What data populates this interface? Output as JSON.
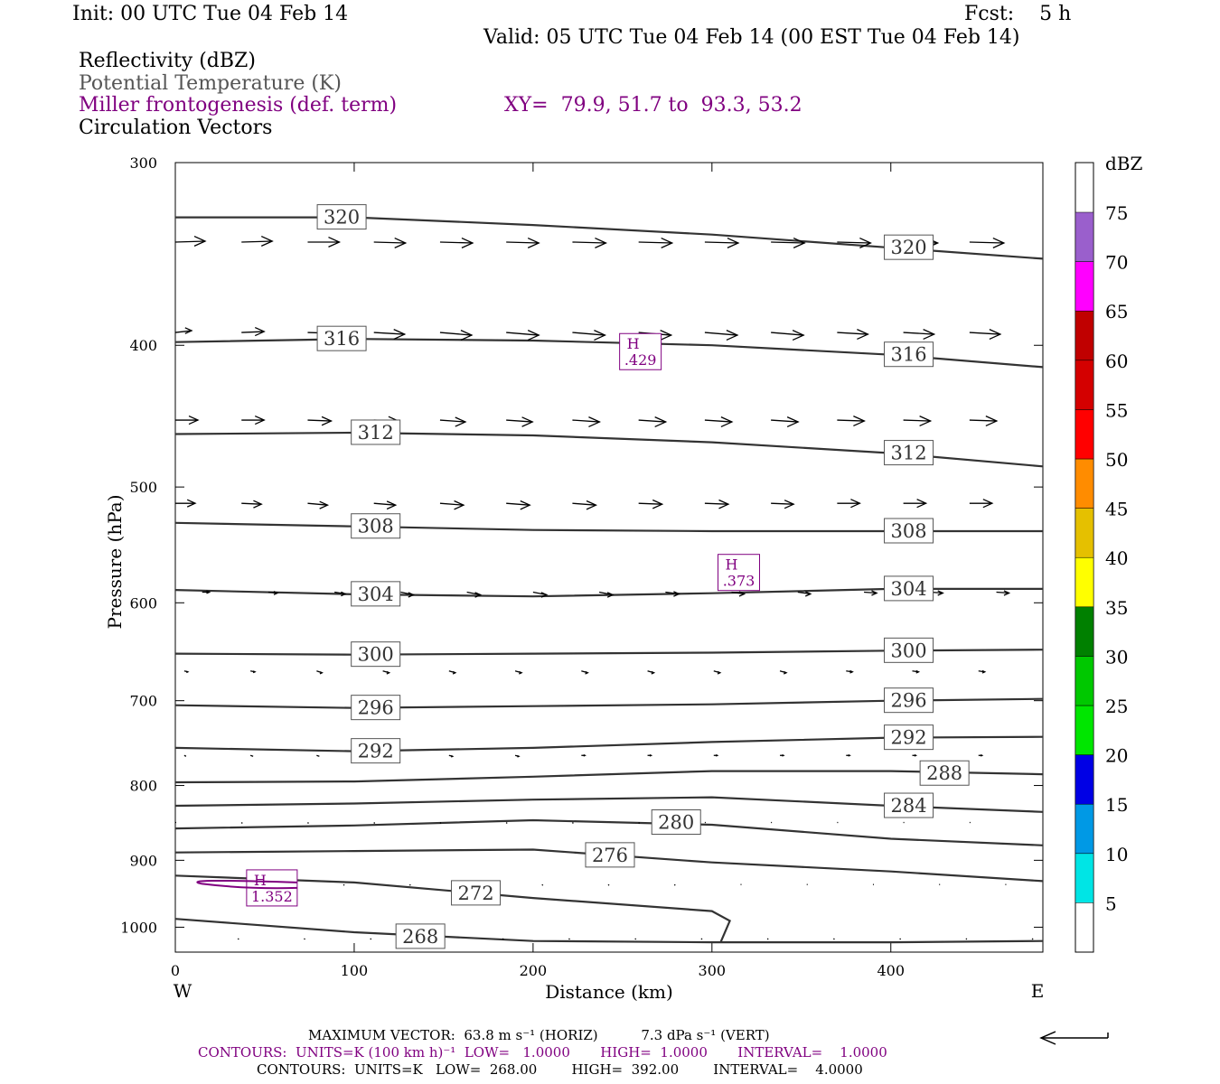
{
  "header": {
    "init": "Init: 00 UTC Tue 04 Feb 14",
    "fcst": "Fcst:    5 h",
    "valid": "Valid: 05 UTC Tue 04 Feb 14 (00 EST Tue 04 Feb 14)"
  },
  "legend": {
    "line1": "Reflectivity (dBZ)",
    "line2": "Potential Temperature (K)",
    "line3": "Miller frontogenesis (def. term)",
    "xy": "XY=  79.9, 51.7 to  93.3, 53.2",
    "line4": "Circulation Vectors"
  },
  "colors": {
    "purple": "#800080",
    "theta_contour": "#333333",
    "vector": "#000000"
  },
  "footer": {
    "max_vector": "MAXIMUM VECTOR:  63.8 m s⁻¹ (HORIZ)          7.3 dPa s⁻¹ (VERT)",
    "contours_fronto": "CONTOURS:  UNITS=K (100 km h)⁻¹  LOW=   1.0000       HIGH=  1.0000       INTERVAL=    1.0000",
    "contours_theta": "CONTOURS:  UNITS=K   LOW=  268.00        HIGH=  392.00        INTERVAL=    4.0000"
  },
  "colorbar": {
    "unit": "dBZ",
    "levels": [
      5,
      10,
      15,
      20,
      25,
      30,
      35,
      40,
      45,
      50,
      55,
      60,
      65,
      70,
      75
    ],
    "colors": [
      "#00e5e5",
      "#0099e5",
      "#0000e5",
      "#00e600",
      "#00c800",
      "#008000",
      "#ffff00",
      "#e5c000",
      "#ff8c00",
      "#ff0000",
      "#d40000",
      "#c00000",
      "#ff00ff",
      "#9a5fcc"
    ]
  },
  "chart_data": {
    "type": "cross-section",
    "xlabel": "Distance (km)",
    "ylabel": "Pressure (hPa)",
    "xlim": [
      0,
      485
    ],
    "ylim": [
      1040,
      300
    ],
    "y_scale": "log",
    "x_ticks": [
      0,
      100,
      200,
      300,
      400
    ],
    "y_ticks": [
      300,
      400,
      500,
      600,
      700,
      800,
      900,
      1000
    ],
    "x_end_labels": {
      "left": "W",
      "right": "E"
    },
    "theta_contours": [
      {
        "value": 320,
        "label": "320",
        "points": [
          [
            0,
            327
          ],
          [
            100,
            327
          ],
          [
            200,
            331
          ],
          [
            300,
            336
          ],
          [
            400,
            343
          ],
          [
            485,
            349
          ]
        ],
        "labels_at": [
          [
            93,
            327
          ],
          [
            410,
            343
          ]
        ]
      },
      {
        "value": 316,
        "label": "316",
        "points": [
          [
            0,
            398
          ],
          [
            100,
            396
          ],
          [
            200,
            397
          ],
          [
            300,
            400
          ],
          [
            400,
            406
          ],
          [
            485,
            414
          ]
        ],
        "labels_at": [
          [
            93,
            396
          ],
          [
            410,
            406
          ]
        ]
      },
      {
        "value": 312,
        "label": "312",
        "points": [
          [
            0,
            460
          ],
          [
            100,
            459
          ],
          [
            200,
            461
          ],
          [
            300,
            466
          ],
          [
            400,
            474
          ],
          [
            485,
            484
          ]
        ],
        "labels_at": [
          [
            112,
            459
          ],
          [
            410,
            474
          ]
        ]
      },
      {
        "value": 308,
        "label": "308",
        "points": [
          [
            0,
            529
          ],
          [
            100,
            532
          ],
          [
            200,
            535
          ],
          [
            300,
            536
          ],
          [
            400,
            536
          ],
          [
            485,
            536
          ]
        ],
        "labels_at": [
          [
            112,
            532
          ],
          [
            410,
            536
          ]
        ]
      },
      {
        "value": 304,
        "label": "304",
        "points": [
          [
            0,
            588
          ],
          [
            100,
            592
          ],
          [
            200,
            594
          ],
          [
            300,
            591
          ],
          [
            400,
            587
          ],
          [
            485,
            587
          ]
        ],
        "labels_at": [
          [
            112,
            592
          ],
          [
            410,
            587
          ]
        ]
      },
      {
        "value": 300,
        "label": "300",
        "points": [
          [
            0,
            650
          ],
          [
            100,
            651
          ],
          [
            200,
            650
          ],
          [
            300,
            649
          ],
          [
            400,
            647
          ],
          [
            485,
            646
          ]
        ],
        "labels_at": [
          [
            112,
            651
          ],
          [
            410,
            647
          ]
        ]
      },
      {
        "value": 296,
        "label": "296",
        "points": [
          [
            0,
            705
          ],
          [
            100,
            708
          ],
          [
            200,
            706
          ],
          [
            300,
            704
          ],
          [
            400,
            700
          ],
          [
            485,
            698
          ]
        ],
        "labels_at": [
          [
            112,
            708
          ],
          [
            410,
            700
          ]
        ]
      },
      {
        "value": 292,
        "label": "292",
        "points": [
          [
            0,
            754
          ],
          [
            100,
            758
          ],
          [
            200,
            754
          ],
          [
            300,
            747
          ],
          [
            400,
            742
          ],
          [
            485,
            741
          ]
        ],
        "labels_at": [
          [
            112,
            758
          ],
          [
            410,
            742
          ]
        ]
      },
      {
        "value": 288,
        "label": "288",
        "points": [
          [
            0,
            796
          ],
          [
            100,
            795
          ],
          [
            200,
            789
          ],
          [
            300,
            782
          ],
          [
            400,
            782
          ],
          [
            485,
            786
          ]
        ],
        "labels_at": [
          [
            430,
            785
          ]
        ]
      },
      {
        "value": 284,
        "label": "284",
        "points": [
          [
            0,
            826
          ],
          [
            100,
            823
          ],
          [
            200,
            818
          ],
          [
            300,
            815
          ],
          [
            400,
            826
          ],
          [
            485,
            834
          ]
        ],
        "labels_at": [
          [
            410,
            826
          ]
        ]
      },
      {
        "value": 280,
        "label": "280",
        "points": [
          [
            0,
            856
          ],
          [
            100,
            852
          ],
          [
            200,
            845
          ],
          [
            300,
            851
          ],
          [
            400,
            870
          ],
          [
            485,
            879
          ]
        ],
        "labels_at": [
          [
            280,
            848
          ]
        ]
      },
      {
        "value": 276,
        "label": "276",
        "points": [
          [
            0,
            889
          ],
          [
            100,
            887
          ],
          [
            200,
            885
          ],
          [
            300,
            903
          ],
          [
            400,
            916
          ],
          [
            485,
            930
          ]
        ],
        "labels_at": [
          [
            243,
            893
          ]
        ]
      },
      {
        "value": 272,
        "label": "272",
        "points": [
          [
            0,
            922
          ],
          [
            100,
            932
          ],
          [
            200,
            955
          ],
          [
            300,
            975
          ],
          [
            310,
            990
          ],
          [
            305,
            1023
          ]
        ],
        "labels_at": [
          [
            168,
            948
          ]
        ]
      },
      {
        "value": 268,
        "label": "268",
        "points": [
          [
            0,
            987
          ],
          [
            100,
            1008
          ],
          [
            200,
            1022
          ],
          [
            300,
            1024
          ],
          [
            400,
            1024
          ],
          [
            485,
            1022
          ]
        ],
        "labels_at": [
          [
            137,
            1015
          ]
        ]
      }
    ],
    "fronto_highs": [
      {
        "label": "H",
        "value": ".429",
        "x": 260,
        "p": 404
      },
      {
        "label": "H",
        "value": ".373",
        "x": 315,
        "p": 572
      },
      {
        "label": "H",
        "value": "1.352",
        "x": 54,
        "p": 940
      }
    ],
    "vectors": [
      {
        "p": 340,
        "x0": 0,
        "spacing": 37,
        "dx": [
          33,
          34,
          35,
          35,
          36,
          36,
          37,
          37,
          37,
          37,
          37,
          38,
          38
        ],
        "dy": [
          -1,
          -1,
          0,
          1,
          1,
          1,
          1,
          1,
          1,
          1,
          1,
          1,
          1
        ]
      },
      {
        "p": 392,
        "x0": 0,
        "spacing": 37,
        "dx": [
          18,
          25,
          32,
          34,
          35,
          36,
          36,
          36,
          36,
          36,
          34,
          34,
          34
        ],
        "dy": [
          -2,
          -1,
          1,
          2,
          3,
          3,
          3,
          3,
          3,
          3,
          2,
          2,
          2
        ]
      },
      {
        "p": 450,
        "x0": 0,
        "spacing": 37,
        "dx": [
          25,
          25,
          26,
          27,
          28,
          29,
          30,
          30,
          30,
          30,
          30,
          30,
          30
        ],
        "dy": [
          0,
          0,
          1,
          1,
          2,
          2,
          2,
          2,
          2,
          2,
          1,
          1,
          1
        ]
      },
      {
        "p": 513,
        "x0": 0,
        "spacing": 37,
        "dx": [
          22,
          22,
          22,
          24,
          26,
          26,
          26,
          26,
          26,
          25,
          25,
          25,
          25
        ],
        "dy": [
          0,
          1,
          2,
          2,
          2,
          2,
          2,
          1,
          1,
          1,
          0,
          0,
          0
        ]
      },
      {
        "p": 590,
        "x0": 15,
        "spacing": 37,
        "dx": [
          8,
          10,
          12,
          14,
          15,
          15,
          15,
          15,
          14,
          14,
          14,
          14,
          14
        ],
        "dy": [
          0,
          1,
          2,
          3,
          3,
          3,
          3,
          2,
          2,
          2,
          1,
          1,
          1
        ]
      },
      {
        "p": 668,
        "x0": 5,
        "spacing": 37,
        "dx": [
          4,
          5,
          6,
          7,
          7,
          7,
          7,
          7,
          7,
          7,
          7,
          7,
          7
        ],
        "dy": [
          1,
          1,
          2,
          2,
          2,
          2,
          2,
          2,
          2,
          2,
          1,
          1,
          1
        ]
      },
      {
        "p": 763,
        "x0": 5,
        "spacing": 37,
        "dx": [
          2,
          3,
          3,
          4,
          4,
          4,
          4,
          4,
          4,
          4,
          4,
          4,
          4
        ],
        "dy": [
          1,
          1,
          1,
          1,
          1,
          1,
          0,
          0,
          0,
          0,
          0,
          0,
          0
        ]
      },
      {
        "p": 848,
        "x0": 0,
        "spacing": 37,
        "dx": [
          1,
          1,
          1,
          1,
          1,
          1,
          1,
          1,
          1,
          1,
          1,
          1,
          1
        ],
        "dy": [
          0,
          1,
          1,
          1,
          1,
          1,
          1,
          1,
          0,
          0,
          0,
          0,
          0
        ]
      },
      {
        "p": 935,
        "x0": 20,
        "spacing": 37,
        "dx": [
          1,
          1,
          1,
          1,
          1,
          1,
          1,
          1,
          1,
          1,
          1,
          1,
          1
        ],
        "dy": [
          1,
          1,
          1,
          1,
          1,
          1,
          1,
          1,
          0,
          0,
          0,
          0,
          0
        ]
      },
      {
        "p": 1018,
        "x0": 35,
        "spacing": 37,
        "dx": [
          1,
          1,
          1,
          1,
          1,
          1,
          1,
          1,
          1,
          1,
          1,
          1,
          1
        ],
        "dy": [
          1,
          1,
          1,
          1,
          1,
          1,
          1,
          1,
          1,
          1,
          1,
          1,
          1
        ]
      }
    ],
    "reference_vector": {
      "direction": "left"
    }
  }
}
